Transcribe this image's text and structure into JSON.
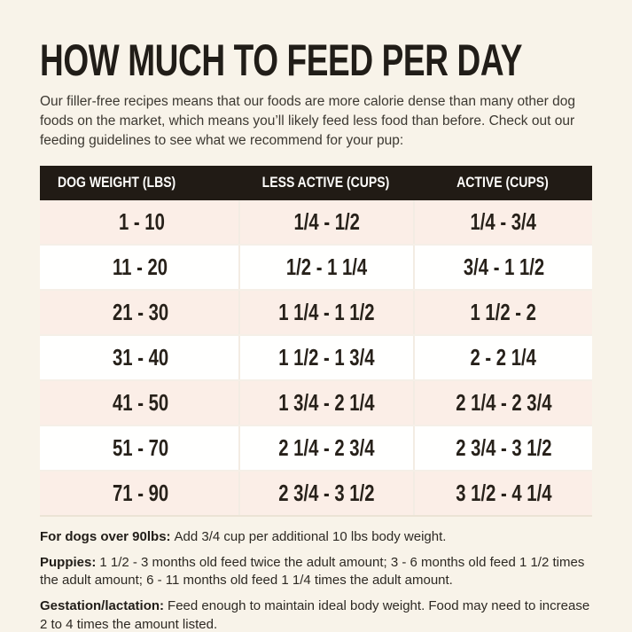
{
  "colors": {
    "page_background": "#f8f3e9",
    "header_background": "#211b15",
    "header_text": "#fdfcfa",
    "row_tint": "#fbeee7",
    "row_white": "#fffffe",
    "text_dark": "#211d18"
  },
  "title": "HOW MUCH TO FEED PER DAY",
  "intro": "Our filler-free recipes means that our foods are more calorie dense than many other dog foods on the market, which means you’ll likely feed less food than before. Check out our feeding guidelines to see what we recommend for your pup:",
  "table": {
    "headers": [
      "DOG WEIGHT (LBS)",
      "LESS ACTIVE (CUPS)",
      "ACTIVE (CUPS)"
    ],
    "rows": [
      [
        "1 - 10",
        "1/4 - 1/2",
        "1/4 - 3/4"
      ],
      [
        "11 - 20",
        "1/2 - 1 1/4",
        "3/4 - 1 1/2"
      ],
      [
        "21 - 30",
        "1 1/4 - 1 1/2",
        "1 1/2 - 2"
      ],
      [
        "31 - 40",
        "1 1/2 - 1 3/4",
        "2 - 2 1/4"
      ],
      [
        "41 - 50",
        "1 3/4 - 2 1/4",
        "2 1/4 - 2 3/4"
      ],
      [
        "51 - 70",
        "2 1/4 - 2 3/4",
        "2 3/4 - 3 1/2"
      ],
      [
        "71 - 90",
        "2 3/4 - 3 1/2",
        "3 1/2 - 4 1/4"
      ]
    ]
  },
  "notes": [
    {
      "label": "For dogs over 90lbs:",
      "text": "Add 3/4 cup per additional 10 lbs body weight."
    },
    {
      "label": "Puppies:",
      "text": "1 1/2 - 3 months old feed twice the adult amount; 3 - 6 months old feed 1 1/2 times the adult amount; 6 - 11 months old feed 1 1/4 times the adult amount."
    },
    {
      "label": "Gestation/lactation:",
      "text": "Feed enough to maintain ideal body weight. Food may need to increase 2 to 4 times the amount listed."
    }
  ]
}
